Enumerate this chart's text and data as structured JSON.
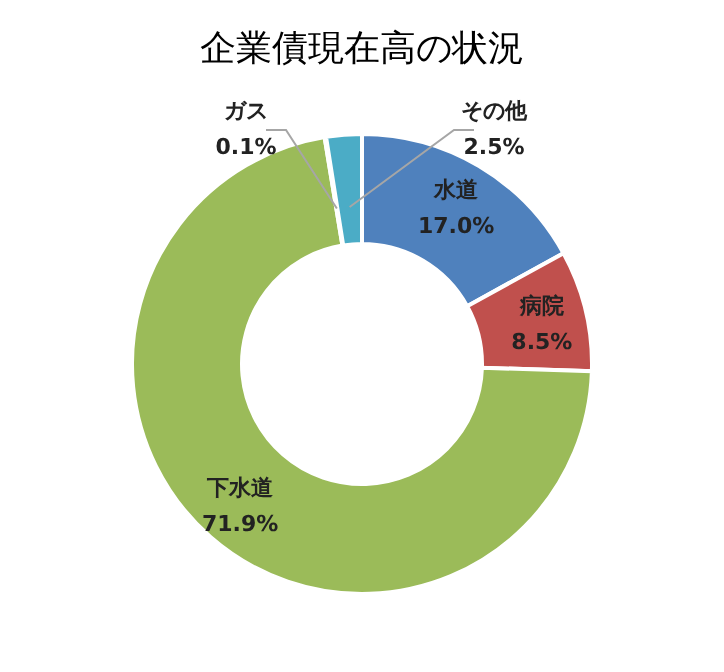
{
  "chart_data": {
    "type": "donut",
    "title": "企業債現在高の状況",
    "categories": [
      "水道",
      "病院",
      "下水道",
      "ガス",
      "その他"
    ],
    "values": [
      17.0,
      8.5,
      71.9,
      0.1,
      2.5
    ],
    "value_labels": [
      "17.0%",
      "8.5%",
      "71.9%",
      "0.1%",
      "2.5%"
    ],
    "colors": [
      "#4f81bd",
      "#c0504d",
      "#9bbb59",
      "#8064a2",
      "#4bacc6"
    ]
  }
}
